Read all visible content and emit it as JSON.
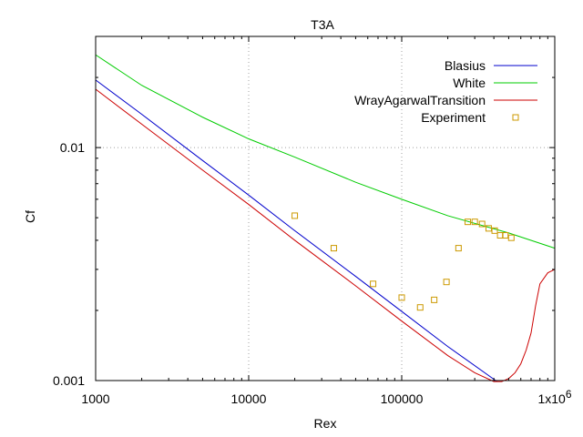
{
  "chart_data": {
    "type": "line",
    "title": "T3A",
    "xlabel": "Rex",
    "ylabel": "Cf",
    "xscale": "log",
    "yscale": "log",
    "xlim": [
      1000,
      1000000
    ],
    "ylim": [
      0.001,
      0.03
    ],
    "grid": true,
    "legend_position": "top-right",
    "x_ticks": [
      {
        "value": 1000,
        "label": "1000"
      },
      {
        "value": 10000,
        "label": "10000"
      },
      {
        "value": 100000,
        "label": "100000"
      },
      {
        "value": 1000000,
        "label": "1x10",
        "sup": "6"
      }
    ],
    "y_ticks": [
      {
        "value": 0.001,
        "label": "0.001"
      },
      {
        "value": 0.01,
        "label": "0.01"
      }
    ],
    "series": [
      {
        "name": "Blasius",
        "style": "line",
        "color": "#0000cc",
        "x": [
          1000,
          2000,
          5000,
          10000,
          20000,
          50000,
          100000,
          200000,
          420000
        ],
        "y": [
          0.0195,
          0.0139,
          0.0088,
          0.00625,
          0.0044,
          0.0028,
          0.00198,
          0.0014,
          0.00099
        ]
      },
      {
        "name": "White",
        "style": "line",
        "color": "#00cc00",
        "x": [
          1000,
          2000,
          5000,
          10000,
          20000,
          50000,
          100000,
          200000,
          500000,
          1000000
        ],
        "y": [
          0.025,
          0.0185,
          0.0135,
          0.0109,
          0.0091,
          0.0071,
          0.006,
          0.0051,
          0.0043,
          0.0037
        ]
      },
      {
        "name": "WrayAgarwalTransition",
        "style": "line",
        "color": "#cc0000",
        "x": [
          1000,
          2000,
          5000,
          10000,
          20000,
          50000,
          100000,
          200000,
          300000,
          400000,
          450000,
          500000,
          550000,
          600000,
          650000,
          700000,
          750000,
          800000,
          900000,
          1000000
        ],
        "y": [
          0.0178,
          0.0126,
          0.008,
          0.0057,
          0.004,
          0.00255,
          0.0018,
          0.00128,
          0.00108,
          0.00099,
          0.00099,
          0.00102,
          0.00108,
          0.00118,
          0.00135,
          0.0016,
          0.0021,
          0.0026,
          0.0029,
          0.003
        ]
      },
      {
        "name": "Experiment",
        "style": "points",
        "color": "#cc9900",
        "x": [
          20000,
          36000,
          65000,
          100000,
          132000,
          163000,
          196000,
          235000,
          270000,
          300000,
          335000,
          370000,
          405000,
          440000,
          475000,
          520000
        ],
        "y": [
          0.0051,
          0.0037,
          0.0026,
          0.00227,
          0.00206,
          0.00222,
          0.00265,
          0.0037,
          0.0048,
          0.0048,
          0.0047,
          0.0045,
          0.0044,
          0.0042,
          0.0042,
          0.0041
        ]
      }
    ]
  }
}
